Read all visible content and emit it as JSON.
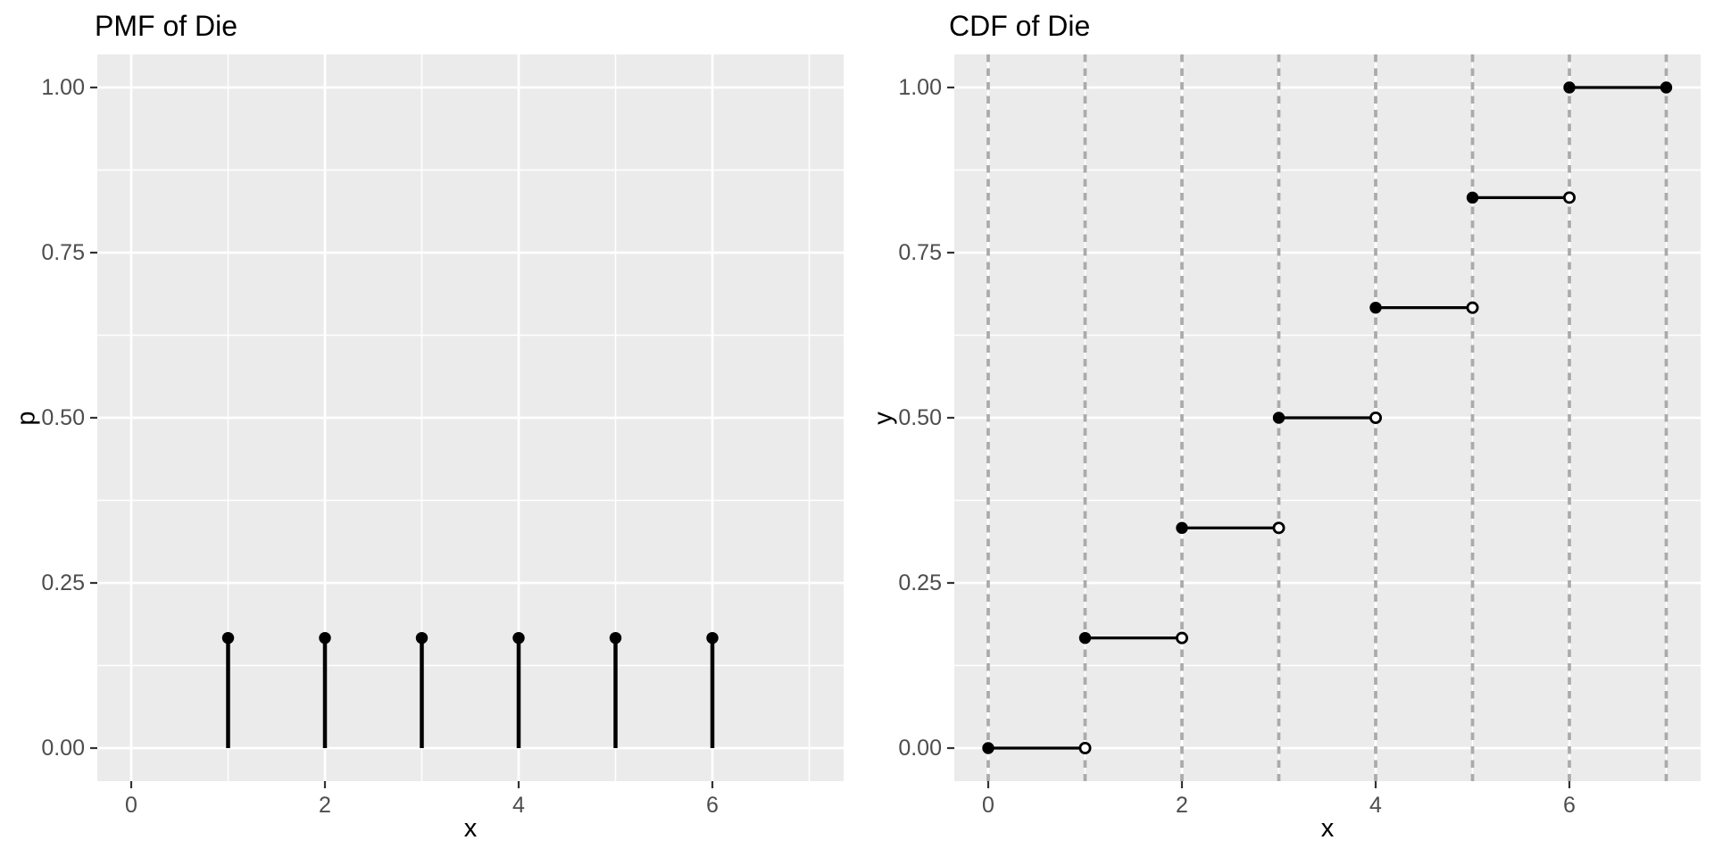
{
  "colors": {
    "panel_background": "#EBEBEB",
    "grid_line": "#FFFFFF",
    "dashed_line": "#AAAAAA",
    "tick_mark": "#333333",
    "tick_label": "#4D4D4D",
    "text": "#000000",
    "mark": "#000000"
  },
  "chart_data": [
    {
      "id": "pmf",
      "type": "stem",
      "title": "PMF of Die",
      "xlabel": "x",
      "ylabel": "p",
      "xlim": [
        -0.35,
        7.35
      ],
      "ylim": [
        -0.05,
        1.05
      ],
      "x_ticks": [
        {
          "value": 0,
          "label": "0"
        },
        {
          "value": 2,
          "label": "2"
        },
        {
          "value": 4,
          "label": "4"
        },
        {
          "value": 6,
          "label": "6"
        }
      ],
      "y_ticks": [
        {
          "value": 0,
          "label": "0.00"
        },
        {
          "value": 0.25,
          "label": "0.25"
        },
        {
          "value": 0.5,
          "label": "0.50"
        },
        {
          "value": 0.75,
          "label": "0.75"
        },
        {
          "value": 1,
          "label": "1.00"
        }
      ],
      "grid": {
        "x_major": [
          0,
          2,
          4,
          6
        ],
        "x_minor": [
          1,
          3,
          5,
          7
        ],
        "y_major": [
          0,
          0.25,
          0.5,
          0.75,
          1
        ],
        "y_minor": [
          0.125,
          0.375,
          0.625,
          0.875
        ]
      },
      "points": [
        {
          "x": 1,
          "p": 0.1667
        },
        {
          "x": 2,
          "p": 0.1667
        },
        {
          "x": 3,
          "p": 0.1667
        },
        {
          "x": 4,
          "p": 0.1667
        },
        {
          "x": 5,
          "p": 0.1667
        },
        {
          "x": 6,
          "p": 0.1667
        }
      ]
    },
    {
      "id": "cdf",
      "type": "step",
      "title": "CDF of Die",
      "xlabel": "x",
      "ylabel": "y",
      "xlim": [
        -0.35,
        7.35
      ],
      "ylim": [
        -0.05,
        1.05
      ],
      "x_ticks": [
        {
          "value": 0,
          "label": "0"
        },
        {
          "value": 2,
          "label": "2"
        },
        {
          "value": 4,
          "label": "4"
        },
        {
          "value": 6,
          "label": "6"
        }
      ],
      "y_ticks": [
        {
          "value": 0,
          "label": "0.00"
        },
        {
          "value": 0.25,
          "label": "0.25"
        },
        {
          "value": 0.5,
          "label": "0.50"
        },
        {
          "value": 0.75,
          "label": "0.75"
        },
        {
          "value": 1,
          "label": "1.00"
        }
      ],
      "grid": {
        "x_major": [
          0,
          2,
          4,
          6
        ],
        "x_minor": [
          1,
          3,
          5,
          7
        ],
        "y_major": [
          0,
          0.25,
          0.5,
          0.75,
          1
        ],
        "y_minor": [
          0.125,
          0.375,
          0.625,
          0.875
        ]
      },
      "vlines": {
        "x": [
          0,
          1,
          2,
          3,
          4,
          5,
          6,
          7
        ],
        "style": "dashed"
      },
      "steps": [
        {
          "x_start": 0,
          "x_end": 1,
          "y": 0,
          "left_endpoint": "closed",
          "right_endpoint": "open"
        },
        {
          "x_start": 1,
          "x_end": 2,
          "y": 0.1667,
          "left_endpoint": "closed",
          "right_endpoint": "open"
        },
        {
          "x_start": 2,
          "x_end": 3,
          "y": 0.3333,
          "left_endpoint": "closed",
          "right_endpoint": "open"
        },
        {
          "x_start": 3,
          "x_end": 4,
          "y": 0.5,
          "left_endpoint": "closed",
          "right_endpoint": "open"
        },
        {
          "x_start": 4,
          "x_end": 5,
          "y": 0.6667,
          "left_endpoint": "closed",
          "right_endpoint": "open"
        },
        {
          "x_start": 5,
          "x_end": 6,
          "y": 0.8333,
          "left_endpoint": "closed",
          "right_endpoint": "open"
        },
        {
          "x_start": 6,
          "x_end": 7,
          "y": 1,
          "left_endpoint": "closed",
          "right_endpoint": "closed"
        }
      ]
    }
  ]
}
